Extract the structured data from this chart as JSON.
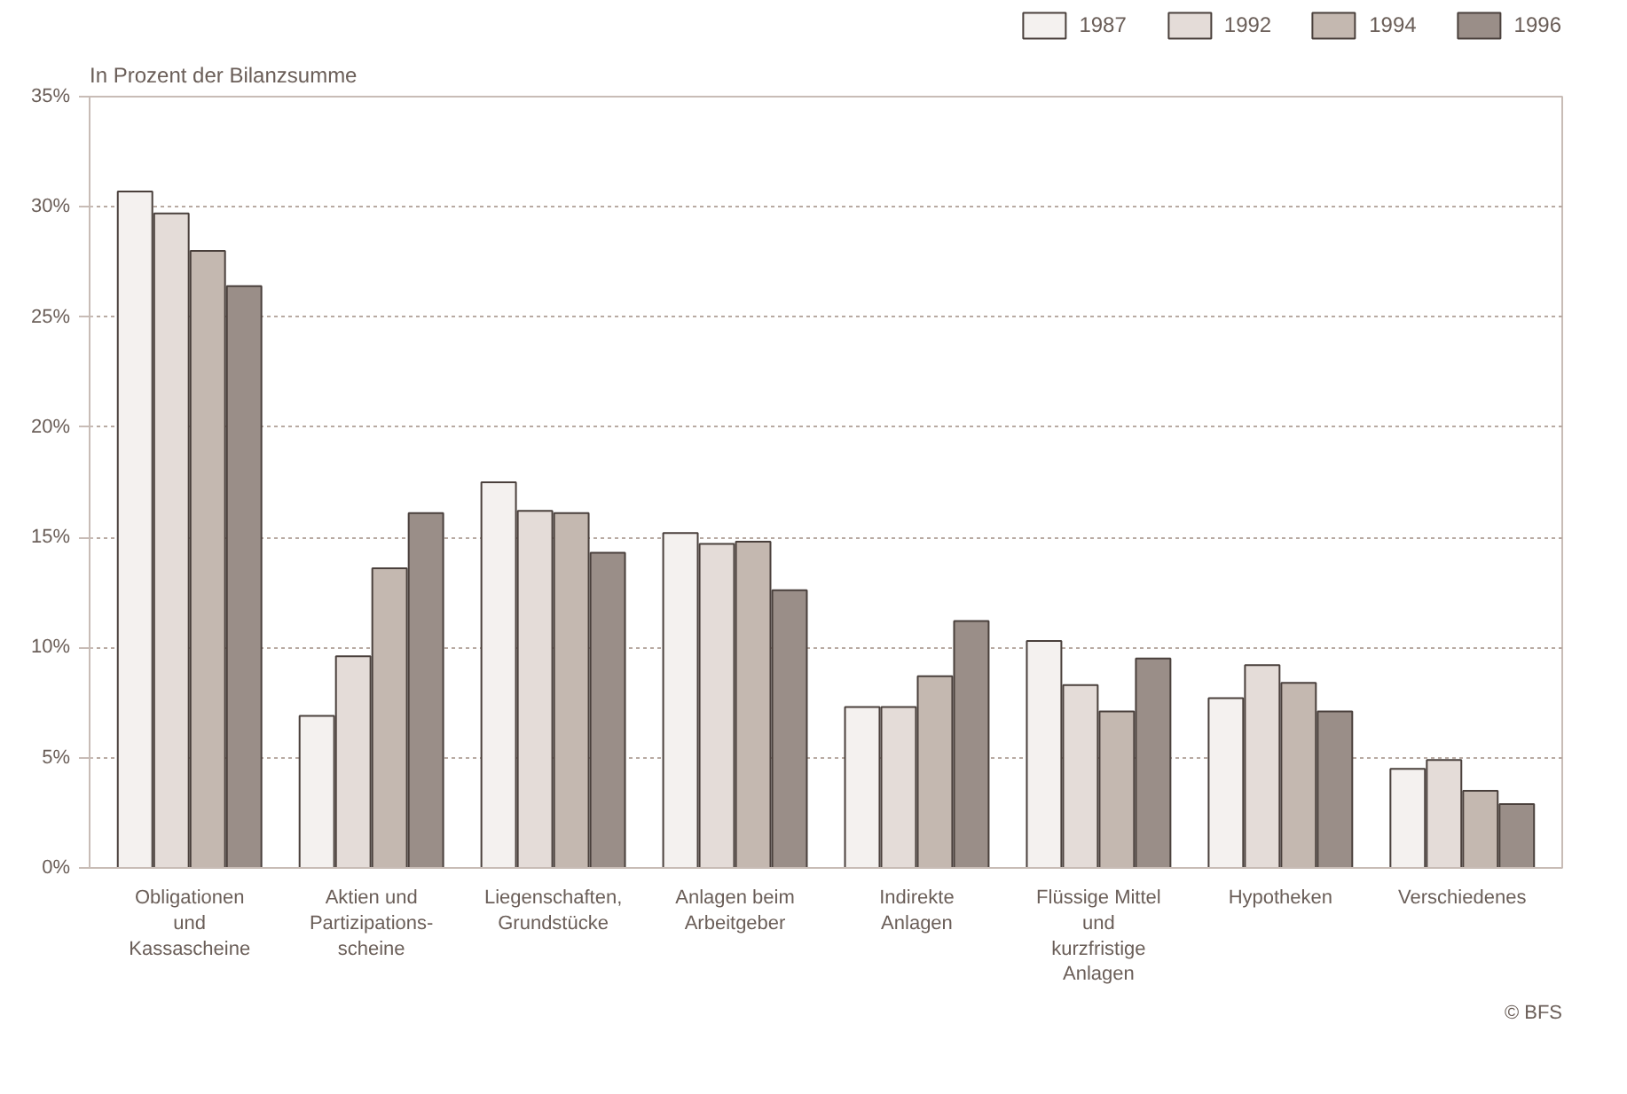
{
  "chart_data": {
    "type": "bar",
    "title": "In Prozent der Bilanzsumme",
    "categories": [
      "Obligationen und Kassascheine",
      "Aktien und Partizipations-scheine",
      "Liegenschaften, Grundstücke",
      "Anlagen beim Arbeitgeber",
      "Indirekte Anlagen",
      "Flüssige Mittel und kurzfristige Anlagen",
      "Hypotheken",
      "Verschiedenes"
    ],
    "series": [
      {
        "name": "1987",
        "color": "#f4f1ef",
        "values": [
          30.7,
          6.9,
          17.5,
          15.2,
          7.3,
          10.3,
          7.7,
          4.5
        ]
      },
      {
        "name": "1992",
        "color": "#e4dcd8",
        "values": [
          29.7,
          9.6,
          16.2,
          14.7,
          7.3,
          8.3,
          9.2,
          4.9
        ]
      },
      {
        "name": "1994",
        "color": "#c4b8b0",
        "values": [
          28.0,
          13.6,
          16.1,
          14.8,
          8.7,
          7.1,
          8.4,
          3.5
        ]
      },
      {
        "name": "1996",
        "color": "#9a8e88",
        "values": [
          26.4,
          16.1,
          14.3,
          12.6,
          11.2,
          9.5,
          7.1,
          2.9
        ]
      }
    ],
    "ylim": [
      0,
      35
    ],
    "yticks": [
      {
        "value": 0,
        "label": "0%"
      },
      {
        "value": 5,
        "label": "5%"
      },
      {
        "value": 10,
        "label": "10%"
      },
      {
        "value": 15,
        "label": "15%"
      },
      {
        "value": 20,
        "label": "20%"
      },
      {
        "value": 25,
        "label": "25%"
      },
      {
        "value": 30,
        "label": "30%"
      },
      {
        "value": 35,
        "label": "35%"
      }
    ],
    "grid": "y",
    "legend": "top right",
    "annotations": [
      "© BFS"
    ]
  }
}
